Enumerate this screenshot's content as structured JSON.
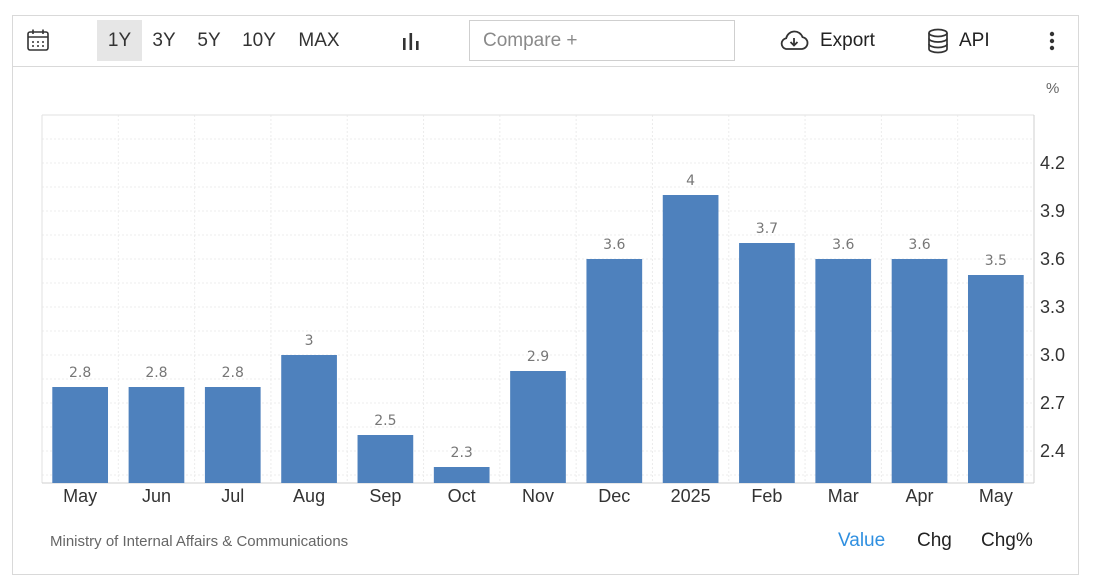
{
  "toolbar": {
    "calendar_icon": "calendar-icon",
    "ranges": [
      {
        "label": "1Y",
        "active": true
      },
      {
        "label": "3Y",
        "active": false
      },
      {
        "label": "5Y",
        "active": false
      },
      {
        "label": "10Y",
        "active": false
      },
      {
        "label": "MAX",
        "active": false
      }
    ],
    "chart_type_icon": "bar-chart-icon",
    "compare_placeholder": "Compare +",
    "export_label": "Export",
    "export_icon": "cloud-download-icon",
    "api_label": "API",
    "api_icon": "database-icon",
    "more_icon": "vertical-dots-icon"
  },
  "chart": {
    "unit": "%",
    "source": "Ministry of Internal Affairs & Communications",
    "view_tabs": [
      {
        "label": "Value",
        "active": true
      },
      {
        "label": "Chg",
        "active": false
      },
      {
        "label": "Chg%",
        "active": false
      }
    ]
  },
  "colors": {
    "bar": "#4e81bd",
    "active_tab": "#2f8fe0",
    "grid": "#ececec"
  },
  "chart_data": {
    "type": "bar",
    "categories": [
      "May",
      "Jun",
      "Jul",
      "Aug",
      "Sep",
      "Oct",
      "Nov",
      "Dec",
      "2025",
      "Feb",
      "Mar",
      "Apr",
      "May"
    ],
    "values": [
      2.8,
      2.8,
      2.8,
      3,
      2.5,
      2.3,
      2.9,
      3.6,
      4,
      3.7,
      3.6,
      3.6,
      3.5
    ],
    "data_labels": [
      "2.8",
      "2.8",
      "2.8",
      "3",
      "2.5",
      "2.3",
      "2.9",
      "3.6",
      "4",
      "3.7",
      "3.6",
      "3.6",
      "3.5"
    ],
    "y_ticks": [
      2.4,
      2.7,
      3.0,
      3.3,
      3.6,
      3.9,
      4.2
    ],
    "y_tick_labels": [
      "2.4",
      "2.7",
      "3.0",
      "3.3",
      "3.6",
      "3.9",
      "4.2"
    ],
    "ylim": [
      2.2,
      4.5
    ],
    "y_axis_position": "right",
    "grid": true,
    "legend": "none"
  }
}
